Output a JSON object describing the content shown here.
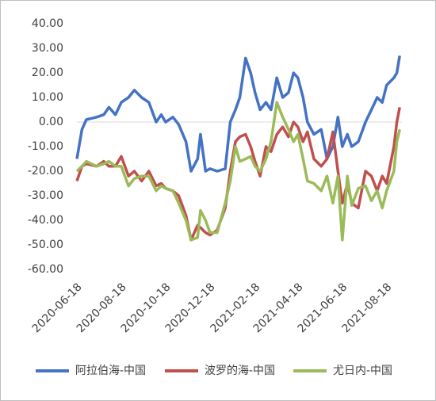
{
  "chart_data": {
    "type": "line",
    "x": [
      "2020-06-18",
      "2020-06-25",
      "2020-07-01",
      "2020-07-15",
      "2020-07-25",
      "2020-08-01",
      "2020-08-10",
      "2020-08-18",
      "2020-08-28",
      "2020-09-05",
      "2020-09-15",
      "2020-09-25",
      "2020-10-05",
      "2020-10-12",
      "2020-10-18",
      "2020-10-28",
      "2020-11-05",
      "2020-11-15",
      "2020-11-22",
      "2020-12-01",
      "2020-12-05",
      "2020-12-12",
      "2020-12-18",
      "2020-12-28",
      "2021-01-08",
      "2021-01-15",
      "2021-01-22",
      "2021-01-28",
      "2021-02-05",
      "2021-02-12",
      "2021-02-18",
      "2021-02-25",
      "2021-03-05",
      "2021-03-12",
      "2021-03-20",
      "2021-03-28",
      "2021-04-05",
      "2021-04-12",
      "2021-04-18",
      "2021-04-25",
      "2021-05-01",
      "2021-05-10",
      "2021-05-20",
      "2021-05-28",
      "2021-06-05",
      "2021-06-12",
      "2021-06-18",
      "2021-06-25",
      "2021-07-01",
      "2021-07-10",
      "2021-07-20",
      "2021-07-28",
      "2021-08-05",
      "2021-08-12",
      "2021-08-18",
      "2021-08-28",
      "2021-09-01",
      "2021-09-05"
    ],
    "series": [
      {
        "name": "阿拉伯海-中国",
        "color": "#4472c4",
        "values": [
          -15,
          -3,
          1,
          2,
          3,
          6,
          3,
          8,
          10,
          13,
          10,
          8,
          0,
          3,
          0,
          2,
          -1,
          -8,
          -20,
          -15,
          -5,
          -20,
          -19,
          -20,
          -19,
          0,
          5,
          10,
          26,
          20,
          12,
          5,
          8,
          5,
          18,
          10,
          12,
          20,
          18,
          10,
          0,
          -5,
          -3,
          -15,
          -10,
          2,
          -10,
          -5,
          -10,
          -8,
          0,
          5,
          10,
          8,
          15,
          18,
          20,
          27
        ]
      },
      {
        "name": "波罗的海-中国",
        "color": "#c0504d",
        "values": [
          -24,
          -18,
          -17,
          -18,
          -16,
          -18,
          -18,
          -14,
          -22,
          -20,
          -24,
          -20,
          -26,
          -25,
          -27,
          -28,
          -30,
          -38,
          -48,
          -42,
          -43,
          -45,
          -46,
          -44,
          -35,
          -20,
          -8,
          -6,
          -5,
          -10,
          -16,
          -22,
          -10,
          -12,
          -5,
          -2,
          -6,
          0,
          -2,
          -8,
          -4,
          -15,
          -18,
          -15,
          -4,
          -20,
          -33,
          -25,
          -33,
          -35,
          -20,
          -22,
          -28,
          -22,
          -25,
          -10,
          0,
          6
        ]
      },
      {
        "name": "尤日内-中国",
        "color": "#9bbb59",
        "values": [
          -20,
          -18,
          -16,
          -18,
          -17,
          -16,
          -18,
          -18,
          -26,
          -23,
          -22,
          -22,
          -28,
          -26,
          -27,
          -28,
          -33,
          -40,
          -48,
          -47,
          -36,
          -40,
          -45,
          -45,
          -33,
          -24,
          -10,
          -16,
          -15,
          -14,
          -18,
          -20,
          -15,
          -8,
          8,
          2,
          -3,
          -8,
          -5,
          -15,
          -24,
          -25,
          -28,
          -22,
          -33,
          -22,
          -48,
          -22,
          -34,
          -27,
          -26,
          -32,
          -28,
          -35,
          -28,
          -20,
          -8,
          -3
        ]
      }
    ],
    "xlim": [
      "2020-06-18",
      "2021-09-08"
    ],
    "xticks": [
      "2020-06-18",
      "2020-08-18",
      "2020-10-18",
      "2020-12-18",
      "2021-02-18",
      "2021-04-18",
      "2021-06-18",
      "2021-08-18"
    ],
    "ylim": [
      -60,
      40
    ],
    "yticks": [
      {
        "value": -60,
        "label": "-60.00"
      },
      {
        "value": -50,
        "label": "-50.00"
      },
      {
        "value": -40,
        "label": "-40.00"
      },
      {
        "value": -30,
        "label": "-30.00"
      },
      {
        "value": -20,
        "label": "-20.00"
      },
      {
        "value": -10,
        "label": "-10.00"
      },
      {
        "value": 0,
        "label": "0.00"
      },
      {
        "value": 10,
        "label": "10.00"
      },
      {
        "value": 20,
        "label": "20.00"
      },
      {
        "value": 30,
        "label": "30.00"
      },
      {
        "value": 40,
        "label": "40.00"
      }
    ],
    "legend": "bottom"
  }
}
